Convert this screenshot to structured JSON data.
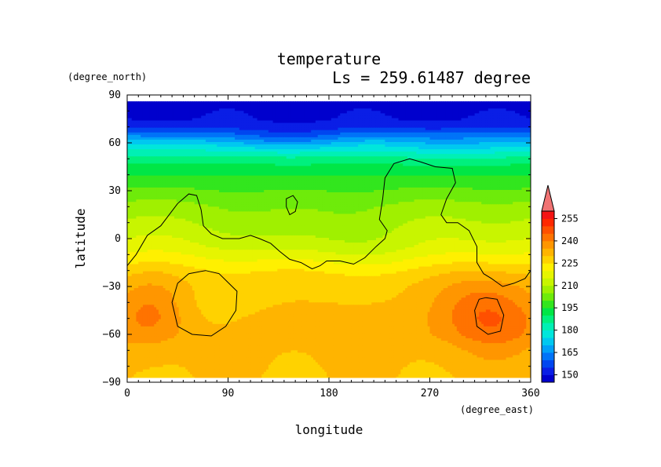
{
  "chart_data": {
    "type": "heatmap",
    "title": "temperature",
    "subtitle": "Ls = 259.61487 degree",
    "xlabel": "longitude",
    "ylabel": "latitude",
    "x_unit": "(degree_east)",
    "y_unit": "(degree_north)",
    "xlim": [
      0,
      360
    ],
    "ylim": [
      -90,
      90
    ],
    "xticks": [
      "0",
      "90",
      "180",
      "270",
      "360"
    ],
    "yticks": [
      "90",
      "60",
      "30",
      "0",
      "−30",
      "−60",
      "−90"
    ],
    "x_tick_values": [
      0,
      90,
      180,
      270,
      360
    ],
    "y_tick_values": [
      90,
      60,
      30,
      0,
      -30,
      -60,
      -90
    ],
    "data_lat_range": [
      -87,
      86
    ],
    "grid": false,
    "colorbar": {
      "placement": "right",
      "extend": "max",
      "levels": [
        145,
        150,
        155,
        160,
        165,
        170,
        175,
        180,
        185,
        190,
        195,
        200,
        205,
        210,
        215,
        220,
        225,
        230,
        235,
        240,
        245,
        250,
        255,
        260
      ],
      "labels": [
        "150",
        "165",
        "180",
        "195",
        "210",
        "225",
        "240",
        "255"
      ],
      "label_values": [
        150,
        165,
        180,
        195,
        210,
        225,
        240,
        255
      ],
      "colors": [
        "#0000cd",
        "#0a1ee6",
        "#0046f0",
        "#0073f8",
        "#00a0f8",
        "#00c8f0",
        "#00e6dc",
        "#00f0b4",
        "#00f07d",
        "#00e646",
        "#32e61e",
        "#6eeb0a",
        "#a0f000",
        "#c8f500",
        "#e6f500",
        "#fff000",
        "#ffd200",
        "#ffb400",
        "#ff9600",
        "#ff7300",
        "#ff5000",
        "#ff2800",
        "#f51414",
        "#f07373"
      ]
    },
    "zonal_profile": {
      "lat": [
        86,
        75,
        70,
        67,
        64,
        61,
        58,
        55,
        52,
        48,
        44,
        40,
        35,
        30,
        25,
        20,
        15,
        10,
        5,
        0,
        -5,
        -10,
        -15,
        -20,
        -25,
        -30,
        -40,
        -50,
        -60,
        -70,
        -87
      ],
      "temperature": [
        148,
        150,
        154,
        160,
        166,
        172,
        177,
        181,
        185,
        189,
        192,
        195,
        198,
        201,
        204,
        207,
        209,
        211,
        213,
        215,
        217,
        220,
        223,
        226,
        228,
        229,
        230,
        232,
        233,
        231,
        230
      ]
    },
    "regional_anomalies": [
      {
        "lon": 150,
        "lat": 5,
        "lon_width": 75,
        "lat_width": 22,
        "delta_temperature": -5
      },
      {
        "lon": 230,
        "lat": -8,
        "lon_width": 55,
        "lat_width": 16,
        "delta_temperature": -3
      },
      {
        "lon": 20,
        "lat": -45,
        "lon_width": 32,
        "lat_width": 22,
        "delta_temperature": 10
      },
      {
        "lon": 330,
        "lat": -48,
        "lon_width": 42,
        "lat_width": 25,
        "delta_temperature": 11
      },
      {
        "lon": 300,
        "lat": -40,
        "lon_width": 40,
        "lat_width": 22,
        "delta_temperature": 5
      },
      {
        "lon": 80,
        "lat": -50,
        "lon_width": 38,
        "lat_width": 18,
        "delta_temperature": -3
      },
      {
        "lon": 140,
        "lat": 62,
        "lon_width": 60,
        "lat_width": 8,
        "delta_temperature": -7
      },
      {
        "lon": 300,
        "lat": 58,
        "lon_width": 60,
        "lat_width": 8,
        "delta_temperature": -5
      }
    ],
    "contours": [
      {
        "name": "topography",
        "closed": false,
        "points": [
          [
            0,
            -17
          ],
          [
            8,
            -10
          ],
          [
            18,
            2
          ],
          [
            30,
            8
          ],
          [
            45,
            22
          ],
          [
            55,
            28
          ],
          [
            62,
            27
          ],
          [
            66,
            18
          ],
          [
            68,
            8
          ],
          [
            75,
            3
          ],
          [
            85,
            0
          ],
          [
            100,
            0
          ],
          [
            110,
            2
          ],
          [
            118,
            0
          ],
          [
            128,
            -3
          ],
          [
            136,
            -8
          ],
          [
            145,
            -13
          ],
          [
            155,
            -15
          ],
          [
            165,
            -19
          ],
          [
            172,
            -17
          ],
          [
            178,
            -14
          ],
          [
            190,
            -14
          ],
          [
            202,
            -16
          ],
          [
            212,
            -12
          ],
          [
            222,
            -5
          ],
          [
            230,
            0
          ],
          [
            232,
            5
          ],
          [
            225,
            12
          ],
          [
            228,
            25
          ],
          [
            230,
            38
          ],
          [
            238,
            47
          ],
          [
            252,
            50
          ],
          [
            262,
            48
          ],
          [
            275,
            45
          ],
          [
            290,
            44
          ],
          [
            293,
            35
          ],
          [
            285,
            25
          ],
          [
            280,
            15
          ],
          [
            285,
            10
          ],
          [
            295,
            10
          ],
          [
            305,
            5
          ],
          [
            312,
            -5
          ],
          [
            312,
            -15
          ],
          [
            318,
            -22
          ],
          [
            325,
            -25
          ],
          [
            335,
            -30
          ],
          [
            345,
            -28
          ],
          [
            355,
            -25
          ],
          [
            360,
            -20
          ]
        ]
      },
      {
        "name": "topography",
        "closed": true,
        "points": [
          [
            142,
            25
          ],
          [
            148,
            27
          ],
          [
            152,
            23
          ],
          [
            150,
            17
          ],
          [
            145,
            15
          ],
          [
            142,
            20
          ]
        ]
      },
      {
        "name": "topography",
        "closed": true,
        "points": [
          [
            70,
            -20
          ],
          [
            82,
            -22
          ],
          [
            98,
            -33
          ],
          [
            97,
            -45
          ],
          [
            88,
            -55
          ],
          [
            75,
            -61
          ],
          [
            58,
            -60
          ],
          [
            45,
            -55
          ],
          [
            40,
            -40
          ],
          [
            45,
            -28
          ],
          [
            55,
            -22
          ]
        ]
      },
      {
        "name": "topography",
        "closed": true,
        "points": [
          [
            320,
            -37
          ],
          [
            330,
            -38
          ],
          [
            336,
            -48
          ],
          [
            333,
            -58
          ],
          [
            322,
            -60
          ],
          [
            312,
            -55
          ],
          [
            310,
            -45
          ],
          [
            314,
            -38
          ]
        ]
      }
    ]
  }
}
